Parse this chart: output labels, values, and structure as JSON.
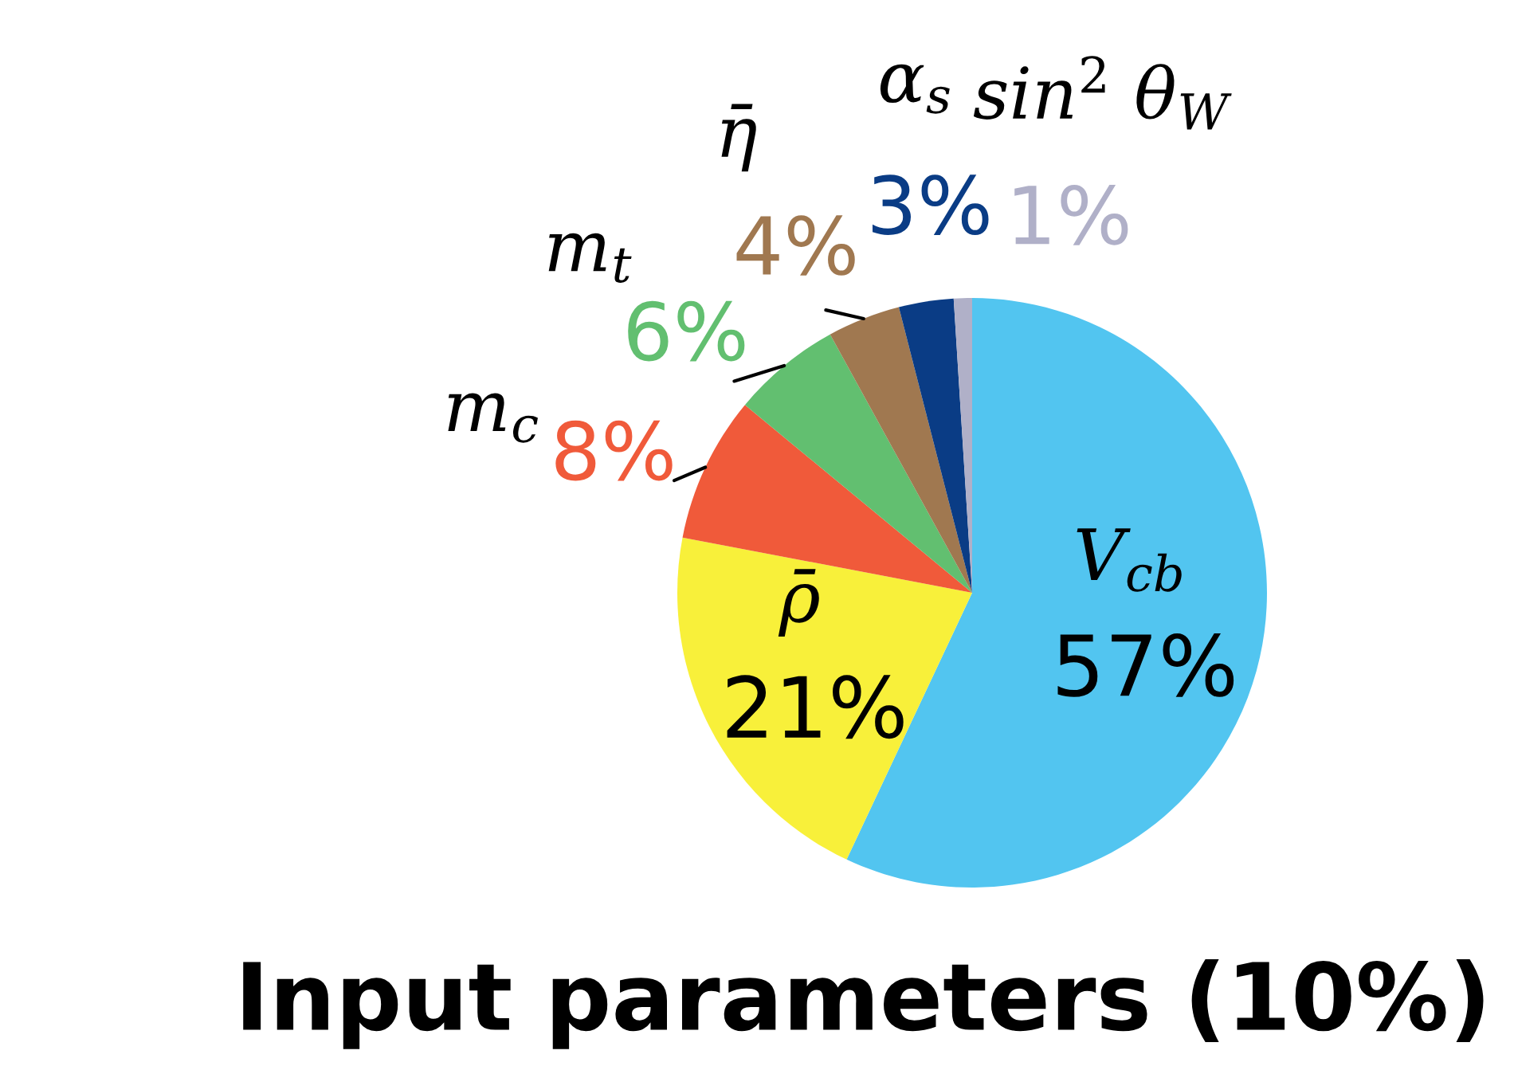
{
  "chart_data": {
    "type": "pie",
    "title": "Input parameters (10%)",
    "categories": [
      "V$_{cb}$",
      "ρ̄",
      "m$_{c}$",
      "m$_{t}$",
      "η̄",
      "α$_{s}$",
      "sin$^{2}$ θ$_{W}$"
    ],
    "values": [
      57,
      21,
      8,
      6,
      4,
      3,
      1
    ],
    "colors": [
      "#52c5f0",
      "#f8f03a",
      "#f05a3a",
      "#62bf70",
      "#a07850",
      "#0a3c85",
      "#b0b0c8"
    ],
    "value_labels": [
      "57%",
      "21%",
      "8%",
      "6%",
      "4%",
      "3%",
      "1%"
    ]
  }
}
